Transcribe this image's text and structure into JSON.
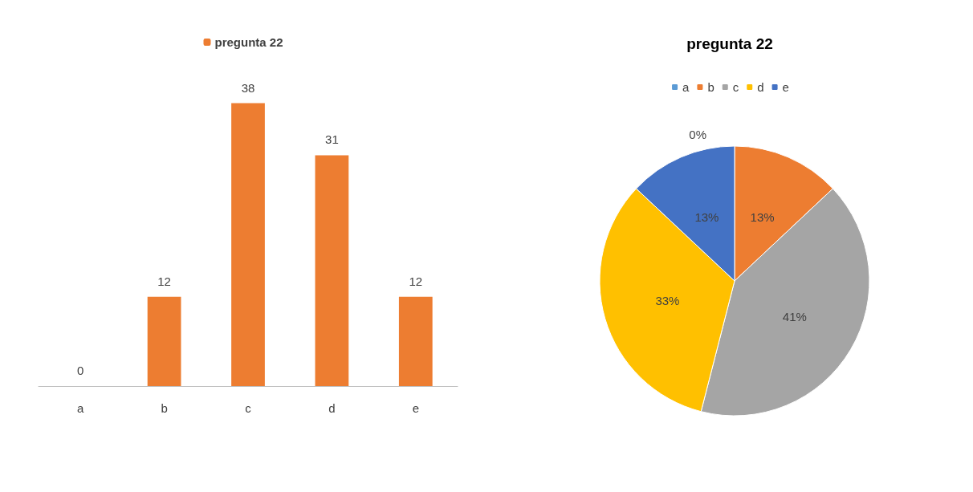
{
  "chart_data": [
    {
      "type": "bar",
      "categories": [
        "a",
        "b",
        "c",
        "d",
        "e"
      ],
      "series": [
        {
          "name": "pregunta 22",
          "color": "#ed7d31",
          "values": [
            0,
            12,
            38,
            31,
            12
          ]
        }
      ],
      "data_labels": true,
      "legend": "top"
    },
    {
      "type": "pie",
      "title": "pregunta 22",
      "categories": [
        "a",
        "b",
        "c",
        "d",
        "e"
      ],
      "values": [
        0,
        13,
        41,
        33,
        13
      ],
      "colors": [
        "#5b9bd5",
        "#ed7d31",
        "#a5a5a5",
        "#ffc000",
        "#4472c4"
      ],
      "value_labels": [
        "0%",
        "13%",
        "41%",
        "33%",
        "13%"
      ],
      "legend": "top"
    }
  ]
}
